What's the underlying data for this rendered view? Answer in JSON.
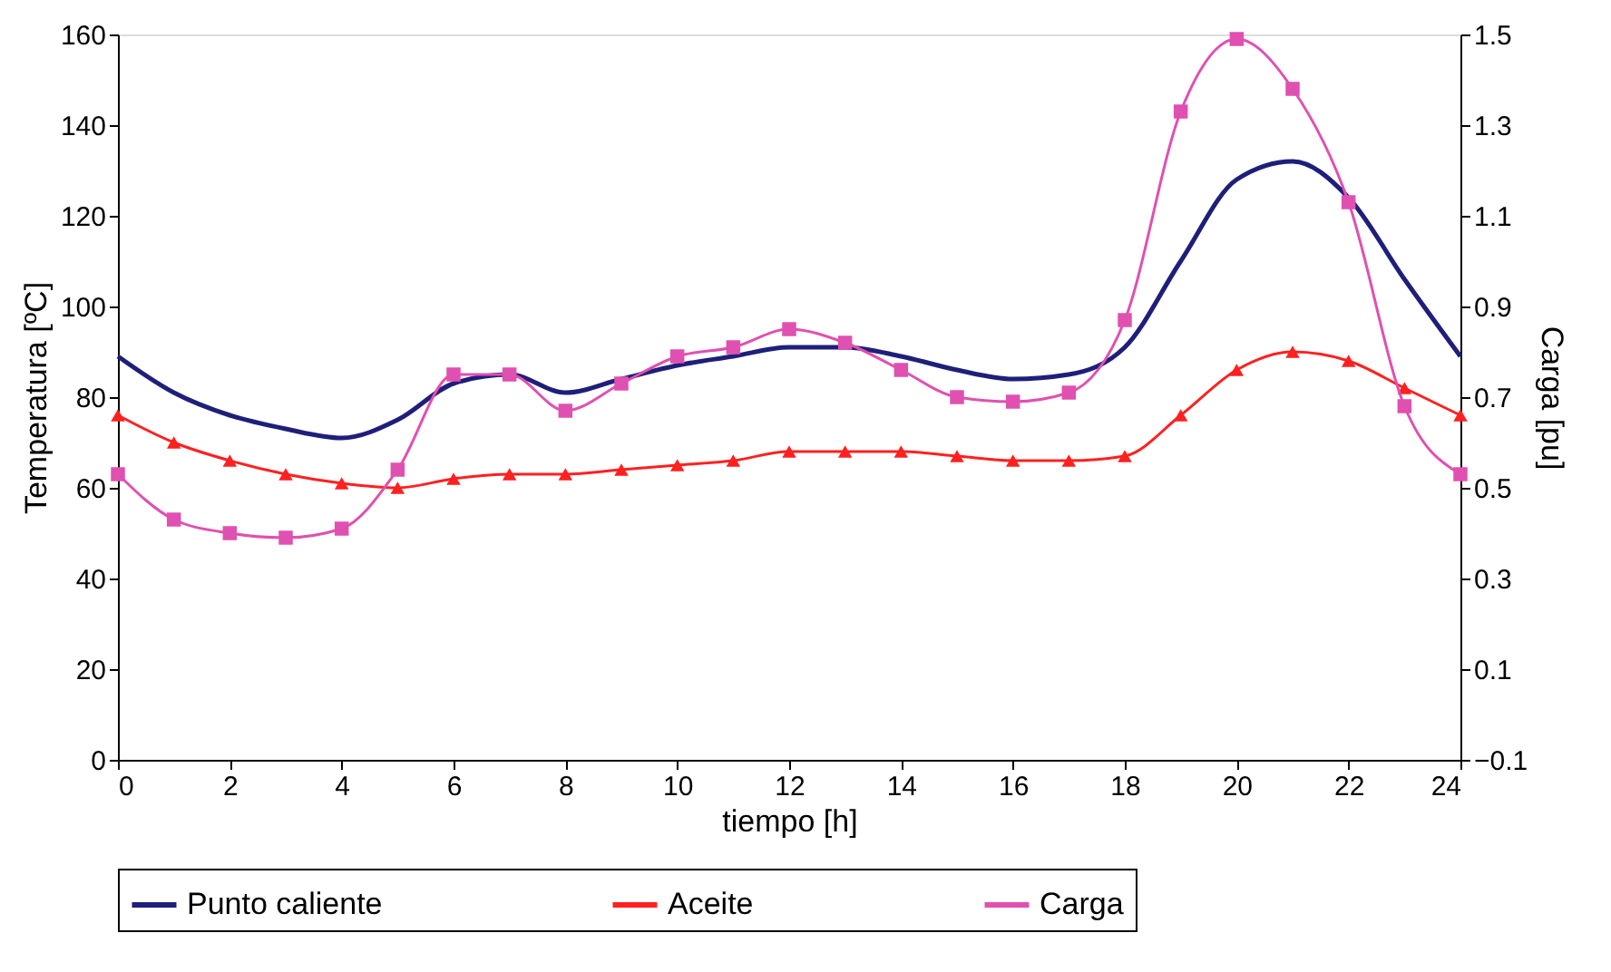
{
  "chart_data": {
    "type": "line",
    "xlabel": "tiempo [h]",
    "ylabel": "Temperatura [ºC]",
    "y2label": "Carga [pu]",
    "x": [
      0,
      1,
      2,
      3,
      4,
      5,
      6,
      7,
      8,
      9,
      10,
      11,
      12,
      13,
      14,
      15,
      16,
      17,
      18,
      19,
      20,
      21,
      22,
      23,
      24
    ],
    "xlim": [
      0,
      24
    ],
    "xticks": [
      0,
      2,
      4,
      6,
      8,
      10,
      12,
      14,
      16,
      18,
      20,
      22,
      24
    ],
    "ylim": [
      0,
      160
    ],
    "yticks": [
      0,
      20,
      40,
      60,
      80,
      100,
      120,
      140,
      160
    ],
    "y2lim": [
      -0.1,
      1.5
    ],
    "y2ticks": [
      -0.1,
      0.1,
      0.3,
      0.5,
      0.7,
      0.9,
      1.1,
      1.3,
      1.5
    ],
    "grid": false,
    "legend": "bottom",
    "line_style": "solid",
    "series": [
      {
        "name": "Punto caliente",
        "color": "#1f1f7a",
        "marker": "none",
        "values": [
          89,
          81,
          76,
          73,
          71,
          75,
          83,
          85,
          81,
          84,
          87,
          89,
          91,
          91,
          89,
          86,
          84,
          85,
          91,
          110,
          128,
          132,
          124,
          106,
          89
        ]
      },
      {
        "name": "Aceite",
        "color": "#ff2020",
        "marker": "triangle",
        "values": [
          76,
          70,
          66,
          63,
          61,
          60,
          62,
          63,
          63,
          64,
          65,
          66,
          68,
          68,
          68,
          67,
          66,
          66,
          67,
          76,
          86,
          90,
          88,
          82,
          76
        ]
      },
      {
        "name": "Carga",
        "color": "#e050b0",
        "marker": "square",
        "axis": "y2",
        "values": [
          0.53,
          0.43,
          0.4,
          0.39,
          0.41,
          0.54,
          0.75,
          0.75,
          0.67,
          0.73,
          0.79,
          0.81,
          0.85,
          0.82,
          0.76,
          0.7,
          0.69,
          0.71,
          0.87,
          1.33,
          1.49,
          1.38,
          1.13,
          0.68,
          0.53
        ]
      }
    ]
  }
}
